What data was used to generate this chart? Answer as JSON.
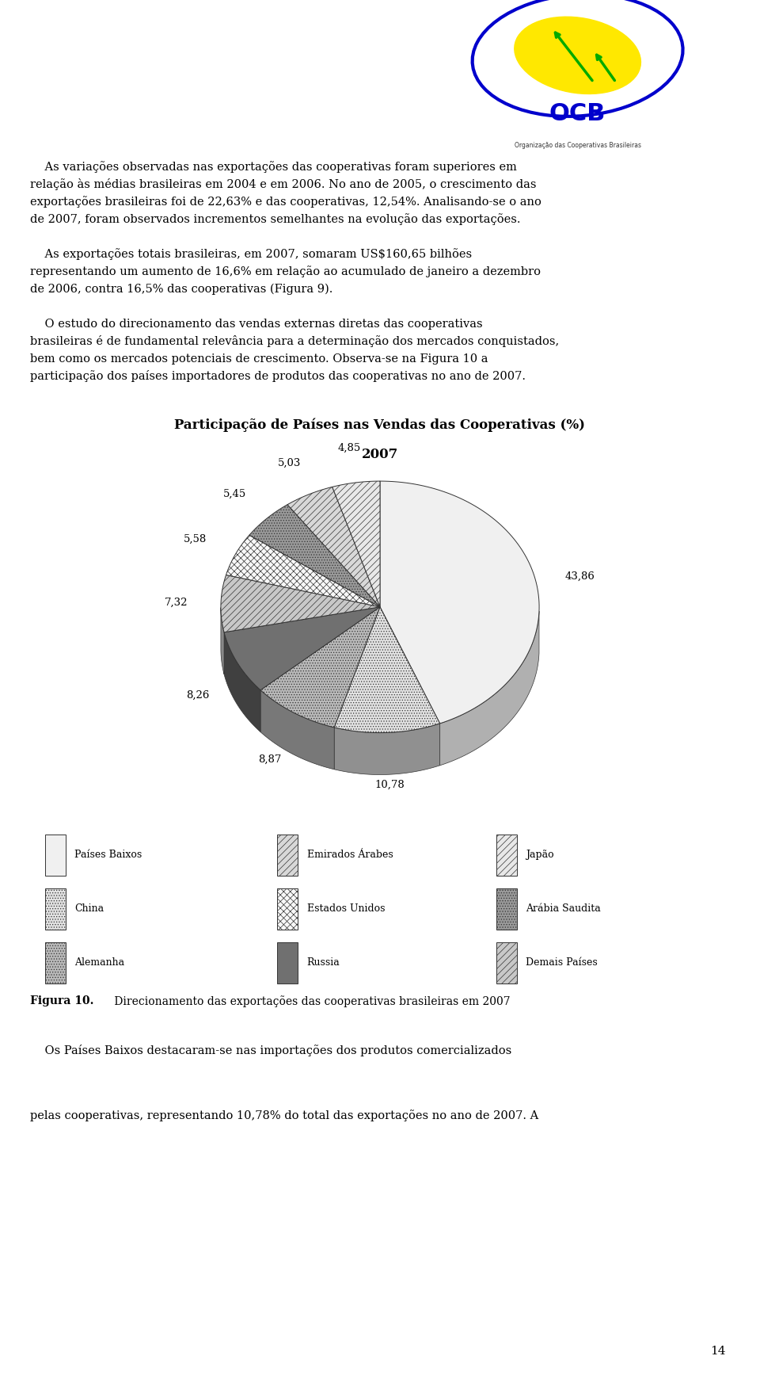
{
  "title_line1": "Participação de Países nas Vendas das Cooperativas (%)",
  "title_line2": "2007",
  "slices": [
    {
      "label": "Países Baixos",
      "value": 43.86,
      "color": "#f0f0f0",
      "side_color": "#b0b0b0",
      "hatch": "",
      "edge": "#333333"
    },
    {
      "label": "China",
      "value": 10.78,
      "color": "#e0e0e0",
      "side_color": "#909090",
      "hatch": ".....",
      "edge": "#333333"
    },
    {
      "label": "Alemanha",
      "value": 8.87,
      "color": "#b8b8b8",
      "side_color": "#787878",
      "hatch": ".....",
      "edge": "#333333"
    },
    {
      "label": "Russia",
      "value": 8.26,
      "color": "#707070",
      "side_color": "#404040",
      "hatch": "",
      "edge": "#333333"
    },
    {
      "label": "Demais Países",
      "value": 7.32,
      "color": "#c8c8c8",
      "side_color": "#888888",
      "hatch": "////",
      "edge": "#333333"
    },
    {
      "label": "Estados Unidos",
      "value": 5.58,
      "color": "#f8f8f8",
      "side_color": "#a0a0a0",
      "hatch": "xxxx",
      "edge": "#333333"
    },
    {
      "label": "Arábia Saudita",
      "value": 5.45,
      "color": "#989898",
      "side_color": "#585858",
      "hatch": ".....",
      "edge": "#333333"
    },
    {
      "label": "Emirados Árabes",
      "value": 5.03,
      "color": "#d8d8d8",
      "side_color": "#989898",
      "hatch": "////",
      "edge": "#333333"
    },
    {
      "label": "Japão",
      "value": 4.85,
      "color": "#e8e8e8",
      "side_color": "#a8a8a8",
      "hatch": "////",
      "edge": "#333333"
    }
  ],
  "label_values": [
    "43,86",
    "10,78",
    "8,87",
    "8,26",
    "7,32",
    "5,58",
    "5,45",
    "5,03",
    "4,85"
  ],
  "background_color": "#ffffff",
  "text_color": "#000000",
  "title_fontsize": 12,
  "label_fontsize": 9.5,
  "legend_fontsize": 9,
  "page_number": "14",
  "legend_order": [
    {
      "label": "Países Baixos",
      "color": "#f0f0f0",
      "hatch": ""
    },
    {
      "label": "Emirados Árabes",
      "color": "#d8d8d8",
      "hatch": "////"
    },
    {
      "label": "Japão",
      "color": "#e8e8e8",
      "hatch": "////"
    },
    {
      "label": "China",
      "color": "#e0e0e0",
      "hatch": "....."
    },
    {
      "label": "Estados Unidos",
      "color": "#f8f8f8",
      "hatch": "xxxx"
    },
    {
      "label": "Arábia Saudita",
      "color": "#989898",
      "hatch": "....."
    },
    {
      "label": "Alemanha",
      "color": "#b8b8b8",
      "hatch": "....."
    },
    {
      "label": "Russia",
      "color": "#707070",
      "hatch": ""
    },
    {
      "label": "Demais Países",
      "color": "#c8c8c8",
      "hatch": "////"
    }
  ]
}
